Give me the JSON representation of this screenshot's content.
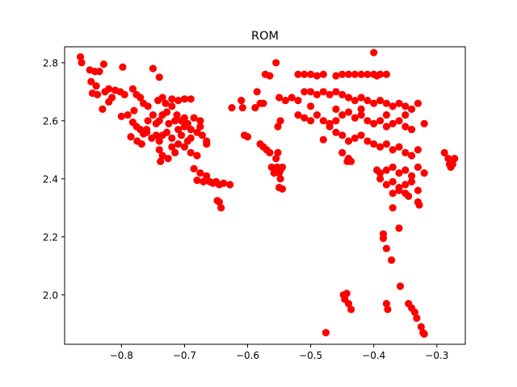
{
  "chart_data": {
    "type": "scatter",
    "title": "ROM",
    "xlabel": "",
    "ylabel": "",
    "xlim": [
      -0.89,
      -0.255
    ],
    "ylim": [
      1.83,
      2.855
    ],
    "xticks": [
      -0.8,
      -0.7,
      -0.6,
      -0.5,
      -0.4,
      -0.3
    ],
    "xtick_labels": [
      "−0.8",
      "−0.7",
      "−0.6",
      "−0.5",
      "−0.4",
      "−0.3"
    ],
    "yticks": [
      2.0,
      2.2,
      2.4,
      2.6,
      2.8
    ],
    "ytick_labels": [
      "2.0",
      "2.2",
      "2.4",
      "2.6",
      "2.8"
    ],
    "grid": false,
    "marker_color": "#ff0000",
    "series": [
      {
        "points": [
          [
            -0.865,
            2.82
          ],
          [
            -0.863,
            2.8
          ],
          [
            -0.85,
            2.775
          ],
          [
            -0.842,
            2.77
          ],
          [
            -0.835,
            2.77
          ],
          [
            -0.828,
            2.795
          ],
          [
            -0.798,
            2.785
          ],
          [
            -0.848,
            2.735
          ],
          [
            -0.84,
            2.72
          ],
          [
            -0.838,
            2.69
          ],
          [
            -0.846,
            2.695
          ],
          [
            -0.83,
            2.64
          ],
          [
            -0.826,
            2.7
          ],
          [
            -0.82,
            2.71
          ],
          [
            -0.81,
            2.705
          ],
          [
            -0.802,
            2.7
          ],
          [
            -0.795,
            2.69
          ],
          [
            -0.815,
            2.68
          ],
          [
            -0.82,
            2.665
          ],
          [
            -0.8,
            2.615
          ],
          [
            -0.79,
            2.62
          ],
          [
            -0.78,
            2.635
          ],
          [
            -0.782,
            2.71
          ],
          [
            -0.776,
            2.69
          ],
          [
            -0.77,
            2.68
          ],
          [
            -0.765,
            2.66
          ],
          [
            -0.758,
            2.65
          ],
          [
            -0.75,
            2.78
          ],
          [
            -0.74,
            2.75
          ],
          [
            -0.742,
            2.67
          ],
          [
            -0.735,
            2.68
          ],
          [
            -0.73,
            2.66
          ],
          [
            -0.72,
            2.675
          ],
          [
            -0.71,
            2.67
          ],
          [
            -0.7,
            2.675
          ],
          [
            -0.69,
            2.675
          ],
          [
            -0.782,
            2.595
          ],
          [
            -0.776,
            2.58
          ],
          [
            -0.77,
            2.57
          ],
          [
            -0.765,
            2.555
          ],
          [
            -0.785,
            2.545
          ],
          [
            -0.775,
            2.53
          ],
          [
            -0.768,
            2.52
          ],
          [
            -0.758,
            2.6
          ],
          [
            -0.75,
            2.62
          ],
          [
            -0.745,
            2.59
          ],
          [
            -0.74,
            2.6
          ],
          [
            -0.735,
            2.62
          ],
          [
            -0.728,
            2.63
          ],
          [
            -0.72,
            2.65
          ],
          [
            -0.712,
            2.62
          ],
          [
            -0.705,
            2.6
          ],
          [
            -0.7,
            2.61
          ],
          [
            -0.695,
            2.59
          ],
          [
            -0.7,
            2.58
          ],
          [
            -0.69,
            2.57
          ],
          [
            -0.68,
            2.56
          ],
          [
            -0.672,
            2.55
          ],
          [
            -0.665,
            2.53
          ],
          [
            -0.745,
            2.55
          ],
          [
            -0.735,
            2.55
          ],
          [
            -0.728,
            2.56
          ],
          [
            -0.72,
            2.54
          ],
          [
            -0.71,
            2.52
          ],
          [
            -0.7,
            2.51
          ],
          [
            -0.74,
            2.5
          ],
          [
            -0.735,
            2.48
          ],
          [
            -0.738,
            2.46
          ],
          [
            -0.726,
            2.47
          ],
          [
            -0.715,
            2.49
          ],
          [
            -0.69,
            2.49
          ],
          [
            -0.68,
            2.48
          ],
          [
            -0.685,
            2.435
          ],
          [
            -0.675,
            2.42
          ],
          [
            -0.665,
            2.41
          ],
          [
            -0.655,
            2.385
          ],
          [
            -0.65,
            2.39
          ],
          [
            -0.645,
            2.38
          ],
          [
            -0.638,
            2.385
          ],
          [
            -0.628,
            2.38
          ],
          [
            -0.68,
            2.395
          ],
          [
            -0.67,
            2.39
          ],
          [
            -0.66,
            2.39
          ],
          [
            -0.648,
            2.325
          ],
          [
            -0.645,
            2.32
          ],
          [
            -0.642,
            2.3
          ],
          [
            -0.76,
            2.57
          ],
          [
            -0.752,
            2.54
          ],
          [
            -0.69,
            2.54
          ],
          [
            -0.71,
            2.57
          ],
          [
            -0.715,
            2.6
          ],
          [
            -0.725,
            2.59
          ],
          [
            -0.705,
            2.55
          ],
          [
            -0.76,
            2.56
          ],
          [
            -0.74,
            2.53
          ],
          [
            -0.72,
            2.51
          ],
          [
            -0.695,
            2.53
          ],
          [
            -0.685,
            2.61
          ],
          [
            -0.675,
            2.6
          ],
          [
            -0.675,
            2.58
          ],
          [
            -0.665,
            2.52
          ],
          [
            -0.625,
            2.645
          ],
          [
            -0.61,
            2.67
          ],
          [
            -0.608,
            2.645
          ],
          [
            -0.605,
            2.55
          ],
          [
            -0.6,
            2.545
          ],
          [
            -0.588,
            2.645
          ],
          [
            -0.585,
            2.7
          ],
          [
            -0.58,
            2.66
          ],
          [
            -0.575,
            2.66
          ],
          [
            -0.572,
            2.76
          ],
          [
            -0.565,
            2.755
          ],
          [
            -0.555,
            2.8
          ],
          [
            -0.58,
            2.52
          ],
          [
            -0.575,
            2.51
          ],
          [
            -0.57,
            2.5
          ],
          [
            -0.565,
            2.49
          ],
          [
            -0.562,
            2.44
          ],
          [
            -0.558,
            2.42
          ],
          [
            -0.553,
            2.44
          ],
          [
            -0.55,
            2.42
          ],
          [
            -0.555,
            2.47
          ],
          [
            -0.552,
            2.49
          ],
          [
            -0.548,
            2.4
          ],
          [
            -0.55,
            2.37
          ],
          [
            -0.545,
            2.365
          ],
          [
            -0.548,
            2.43
          ],
          [
            -0.545,
            2.44
          ],
          [
            -0.552,
            2.58
          ],
          [
            -0.548,
            2.6
          ],
          [
            -0.52,
            2.76
          ],
          [
            -0.51,
            2.76
          ],
          [
            -0.5,
            2.76
          ],
          [
            -0.49,
            2.755
          ],
          [
            -0.48,
            2.76
          ],
          [
            -0.46,
            2.755
          ],
          [
            -0.45,
            2.76
          ],
          [
            -0.44,
            2.76
          ],
          [
            -0.43,
            2.76
          ],
          [
            -0.42,
            2.76
          ],
          [
            -0.41,
            2.76
          ],
          [
            -0.4,
            2.76
          ],
          [
            -0.395,
            2.755
          ],
          [
            -0.39,
            2.76
          ],
          [
            -0.4,
            2.835
          ],
          [
            -0.38,
            2.76
          ],
          [
            -0.55,
            2.68
          ],
          [
            -0.54,
            2.67
          ],
          [
            -0.53,
            2.68
          ],
          [
            -0.52,
            2.67
          ],
          [
            -0.51,
            2.7
          ],
          [
            -0.5,
            2.7
          ],
          [
            -0.49,
            2.69
          ],
          [
            -0.48,
            2.7
          ],
          [
            -0.47,
            2.69
          ],
          [
            -0.46,
            2.7
          ],
          [
            -0.45,
            2.69
          ],
          [
            -0.44,
            2.68
          ],
          [
            -0.43,
            2.67
          ],
          [
            -0.42,
            2.68
          ],
          [
            -0.41,
            2.67
          ],
          [
            -0.4,
            2.66
          ],
          [
            -0.39,
            2.67
          ],
          [
            -0.38,
            2.66
          ],
          [
            -0.37,
            2.65
          ],
          [
            -0.36,
            2.66
          ],
          [
            -0.35,
            2.65
          ],
          [
            -0.34,
            2.64
          ],
          [
            -0.33,
            2.66
          ],
          [
            -0.52,
            2.62
          ],
          [
            -0.51,
            2.61
          ],
          [
            -0.5,
            2.6
          ],
          [
            -0.49,
            2.62
          ],
          [
            -0.48,
            2.6
          ],
          [
            -0.47,
            2.59
          ],
          [
            -0.46,
            2.6
          ],
          [
            -0.45,
            2.62
          ],
          [
            -0.44,
            2.63
          ],
          [
            -0.43,
            2.61
          ],
          [
            -0.42,
            2.62
          ],
          [
            -0.41,
            2.6
          ],
          [
            -0.4,
            2.59
          ],
          [
            -0.39,
            2.6
          ],
          [
            -0.38,
            2.58
          ],
          [
            -0.37,
            2.59
          ],
          [
            -0.36,
            2.6
          ],
          [
            -0.35,
            2.58
          ],
          [
            -0.34,
            2.57
          ],
          [
            -0.32,
            2.59
          ],
          [
            -0.48,
            2.535
          ],
          [
            -0.47,
            2.58
          ],
          [
            -0.46,
            2.56
          ],
          [
            -0.45,
            2.55
          ],
          [
            -0.44,
            2.53
          ],
          [
            -0.43,
            2.54
          ],
          [
            -0.42,
            2.55
          ],
          [
            -0.41,
            2.53
          ],
          [
            -0.4,
            2.52
          ],
          [
            -0.39,
            2.51
          ],
          [
            -0.38,
            2.52
          ],
          [
            -0.37,
            2.5
          ],
          [
            -0.36,
            2.51
          ],
          [
            -0.35,
            2.49
          ],
          [
            -0.34,
            2.48
          ],
          [
            -0.33,
            2.5
          ],
          [
            -0.45,
            2.49
          ],
          [
            -0.44,
            2.47
          ],
          [
            -0.442,
            2.46
          ],
          [
            -0.436,
            2.46
          ],
          [
            -0.395,
            2.43
          ],
          [
            -0.39,
            2.42
          ],
          [
            -0.38,
            2.43
          ],
          [
            -0.37,
            2.44
          ],
          [
            -0.36,
            2.42
          ],
          [
            -0.35,
            2.43
          ],
          [
            -0.34,
            2.41
          ],
          [
            -0.33,
            2.44
          ],
          [
            -0.32,
            2.42
          ],
          [
            -0.39,
            2.4
          ],
          [
            -0.38,
            2.38
          ],
          [
            -0.37,
            2.39
          ],
          [
            -0.36,
            2.37
          ],
          [
            -0.35,
            2.38
          ],
          [
            -0.34,
            2.39
          ],
          [
            -0.33,
            2.36
          ],
          [
            -0.37,
            2.35
          ],
          [
            -0.36,
            2.36
          ],
          [
            -0.35,
            2.35
          ],
          [
            -0.345,
            2.34
          ],
          [
            -0.33,
            2.32
          ],
          [
            -0.328,
            2.31
          ],
          [
            -0.37,
            2.3
          ],
          [
            -0.36,
            2.23
          ],
          [
            -0.385,
            2.21
          ],
          [
            -0.385,
            2.195
          ],
          [
            -0.38,
            2.16
          ],
          [
            -0.372,
            2.12
          ],
          [
            -0.358,
            2.03
          ],
          [
            -0.38,
            1.97
          ],
          [
            -0.378,
            1.95
          ],
          [
            -0.345,
            1.97
          ],
          [
            -0.34,
            1.955
          ],
          [
            -0.335,
            1.94
          ],
          [
            -0.332,
            1.92
          ],
          [
            -0.325,
            1.89
          ],
          [
            -0.322,
            1.87
          ],
          [
            -0.32,
            1.865
          ],
          [
            -0.448,
            2.0
          ],
          [
            -0.443,
            2.005
          ],
          [
            -0.446,
            1.985
          ],
          [
            -0.44,
            1.97
          ],
          [
            -0.436,
            1.95
          ],
          [
            -0.476,
            1.87
          ],
          [
            -0.288,
            2.49
          ],
          [
            -0.282,
            2.47
          ],
          [
            -0.28,
            2.45
          ],
          [
            -0.278,
            2.44
          ],
          [
            -0.275,
            2.45
          ],
          [
            -0.272,
            2.47
          ],
          [
            -0.5,
            2.65
          ],
          [
            -0.46,
            2.64
          ],
          [
            -0.42,
            2.64
          ],
          [
            -0.38,
            2.62
          ],
          [
            -0.35,
            2.62
          ]
        ]
      }
    ]
  }
}
